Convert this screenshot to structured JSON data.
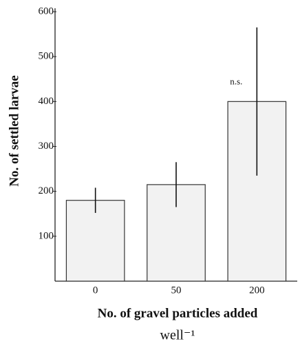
{
  "chart_data": {
    "type": "bar",
    "ylabel": "No. of settled larvae",
    "xlabel": [
      "No. of gravel particles added",
      "well⁻¹"
    ],
    "categories": [
      "0",
      "50",
      "200"
    ],
    "values": [
      180,
      215,
      400
    ],
    "errors": [
      28,
      50,
      165
    ],
    "color": "#f2f2f2",
    "ylim": [
      0,
      600
    ],
    "yticks": [
      100,
      200,
      300,
      400,
      500,
      600
    ],
    "annotations": [
      {
        "text": "n.s.",
        "category": 2
      }
    ],
    "grid": false
  }
}
